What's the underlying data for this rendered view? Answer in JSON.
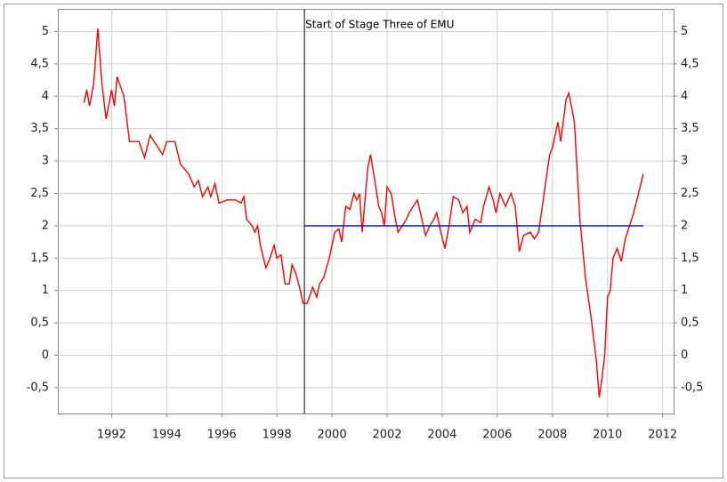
{
  "chart_data": {
    "type": "line",
    "annotation": {
      "text": "Start of Stage Three of EMU",
      "x": 1999
    },
    "series": [
      {
        "color": "#ff0000",
        "x": [
          1991.0,
          1991.1,
          1991.2,
          1991.35,
          1991.5,
          1991.65,
          1991.8,
          1992.0,
          1992.1,
          1992.2,
          1992.45,
          1992.65,
          1993.0,
          1993.2,
          1993.4,
          1993.7,
          1993.85,
          1994.0,
          1994.3,
          1994.5,
          1994.8,
          1995.0,
          1995.15,
          1995.3,
          1995.5,
          1995.6,
          1995.75,
          1995.9,
          1996.2,
          1996.5,
          1996.7,
          1996.8,
          1996.9,
          1997.1,
          1997.2,
          1997.3,
          1997.4,
          1997.6,
          1997.75,
          1997.9,
          1998.0,
          1998.15,
          1998.3,
          1998.45,
          1998.55,
          1998.7,
          1998.85,
          1998.95,
          1999.1,
          1999.3,
          1999.45,
          1999.55,
          1999.7,
          1999.9,
          2000.1,
          2000.25,
          2000.35,
          2000.5,
          2000.65,
          2000.8,
          2000.9,
          2001.0,
          2001.1,
          2001.3,
          2001.4,
          2001.55,
          2001.7,
          2001.8,
          2001.9,
          2002.0,
          2002.15,
          2002.3,
          2002.4,
          2002.55,
          2002.7,
          2002.8,
          2002.95,
          2003.1,
          2003.4,
          2003.55,
          2003.7,
          2003.8,
          2003.95,
          2004.1,
          2004.25,
          2004.4,
          2004.6,
          2004.75,
          2004.9,
          2005.0,
          2005.2,
          2005.4,
          2005.5,
          2005.7,
          2005.85,
          2005.95,
          2006.1,
          2006.3,
          2006.5,
          2006.65,
          2006.8,
          2006.95,
          2007.2,
          2007.35,
          2007.5,
          2007.6,
          2007.9,
          2008.0,
          2008.2,
          2008.3,
          2008.5,
          2008.6,
          2008.8,
          2009.0,
          2009.2,
          2009.4,
          2009.6,
          2009.7,
          2009.8,
          2009.9,
          2010.0,
          2010.1,
          2010.2,
          2010.35,
          2010.5,
          2010.65,
          2010.8,
          2010.95,
          2011.1,
          2011.3
        ],
        "values": [
          3.9,
          4.1,
          3.85,
          4.2,
          5.05,
          4.2,
          3.65,
          4.1,
          3.85,
          4.3,
          4.0,
          3.3,
          3.3,
          3.05,
          3.4,
          3.2,
          3.1,
          3.3,
          3.3,
          2.95,
          2.8,
          2.6,
          2.7,
          2.45,
          2.6,
          2.45,
          2.65,
          2.35,
          2.4,
          2.4,
          2.35,
          2.45,
          2.1,
          2.0,
          1.9,
          2.0,
          1.7,
          1.35,
          1.5,
          1.7,
          1.5,
          1.55,
          1.1,
          1.1,
          1.4,
          1.25,
          1.0,
          0.8,
          0.8,
          1.05,
          0.9,
          1.1,
          1.2,
          1.5,
          1.9,
          1.95,
          1.75,
          2.3,
          2.25,
          2.5,
          2.4,
          2.5,
          1.9,
          2.9,
          3.1,
          2.7,
          2.3,
          2.2,
          2.0,
          2.6,
          2.5,
          2.1,
          1.9,
          2.0,
          2.1,
          2.2,
          2.3,
          2.4,
          1.85,
          2.0,
          2.1,
          2.2,
          1.9,
          1.65,
          2.0,
          2.45,
          2.4,
          2.2,
          2.3,
          1.9,
          2.1,
          2.05,
          2.3,
          2.6,
          2.4,
          2.2,
          2.5,
          2.3,
          2.5,
          2.3,
          1.6,
          1.85,
          1.9,
          1.8,
          1.9,
          2.2,
          3.1,
          3.2,
          3.6,
          3.3,
          3.95,
          4.05,
          3.6,
          2.1,
          1.2,
          0.6,
          -0.1,
          -0.65,
          -0.35,
          0.0,
          0.9,
          1.0,
          1.5,
          1.65,
          1.45,
          1.8,
          2.0,
          2.2,
          2.45,
          2.8
        ]
      },
      {
        "color": "#0000ff",
        "x": [
          1999,
          2011.3
        ],
        "values": [
          2,
          2
        ]
      }
    ],
    "xlim": [
      1990.05,
      2012.4
    ],
    "xticks": [
      1992,
      1994,
      1996,
      1998,
      2000,
      2002,
      2004,
      2006,
      2008,
      2010,
      2012
    ],
    "ylim": [
      -0.9,
      5.35
    ],
    "yticks": [
      {
        "value": -0.5,
        "label": "-0,5"
      },
      0,
      {
        "value": 0.5,
        "label": "0,5"
      },
      1,
      {
        "value": 1.5,
        "label": "1,5"
      },
      2,
      {
        "value": 2.5,
        "label": "2,5"
      },
      3,
      {
        "value": 3.5,
        "label": "3,5"
      },
      4,
      {
        "value": 4.5,
        "label": "4,5"
      },
      5
    ],
    "grid": true
  }
}
